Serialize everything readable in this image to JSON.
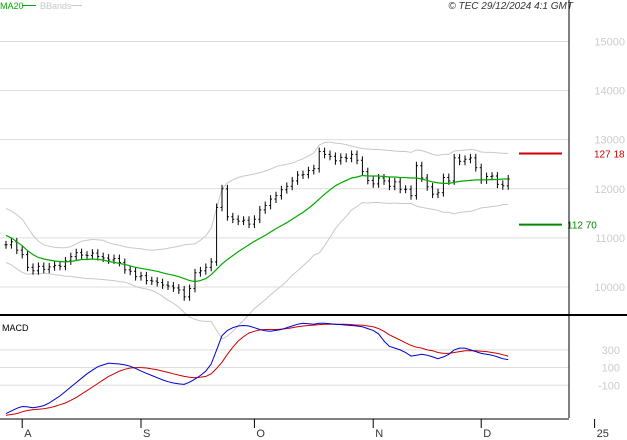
{
  "copyright": "© TEC 29/12/2024 4:1 GMT",
  "legend": [
    {
      "name": "MA20",
      "color": "#00aa00"
    },
    {
      "name": "BBands",
      "color": "#c8c8c8"
    }
  ],
  "macd_label": "MACD",
  "colors": {
    "candle": "#000000",
    "ma": "#00aa00",
    "bands": "#c8c8c8",
    "macd": "#0000cc",
    "signal": "#cc0000",
    "high_level": "#cc0000",
    "low_level": "#008800",
    "grid": "#dddddd"
  },
  "chart_data": [
    {
      "type": "line",
      "title": "",
      "y_ticks": [
        "10000",
        "11000",
        "12000",
        "13000",
        "14000",
        "15000"
      ],
      "ylim": [
        9450,
        15600
      ],
      "x_ticks": [
        {
          "label": "A",
          "index": 3
        },
        {
          "label": "S",
          "index": 25
        },
        {
          "label": "O",
          "index": 46
        },
        {
          "label": "N",
          "index": 68
        },
        {
          "label": "D",
          "index": 88
        },
        {
          "label": "25",
          "index": 109
        }
      ],
      "levels": [
        {
          "value": 12718,
          "label": "127 18",
          "color": "#cc0000"
        },
        {
          "value": 11270,
          "label": "112 70",
          "color": "#008800"
        }
      ],
      "series": [
        {
          "values": [
            10860,
            10920,
            10750,
            10660,
            10400,
            10330,
            10420,
            10360,
            10410,
            10440,
            10420,
            10530,
            10620,
            10700,
            10650,
            10640,
            10690,
            10620,
            10590,
            10550,
            10580,
            10500,
            10350,
            10320,
            10210,
            10230,
            10130,
            10120,
            10090,
            10040,
            10020,
            9980,
            9940,
            9800,
            9970,
            10290,
            10330,
            10400,
            10510,
            11620,
            12000,
            11430,
            11380,
            11340,
            11360,
            11280,
            11380,
            11570,
            11660,
            11790,
            11860,
            11980,
            12050,
            12160,
            12280,
            12290,
            12370,
            12410,
            12760,
            12700,
            12660,
            12570,
            12640,
            12620,
            12700,
            12580,
            12350,
            12170,
            12100,
            12220,
            12160,
            12050,
            12140,
            11990,
            11990,
            11860,
            12470,
            12220,
            12040,
            11890,
            11920,
            12230,
            12160,
            12630,
            12560,
            12600,
            12630,
            12430,
            12180,
            12250,
            12260,
            12090,
            12060,
            12200
          ]
        },
        {
          "name": "MA20",
          "values": [
            11050,
            11000,
            10920,
            10840,
            10740,
            10660,
            10600,
            10570,
            10550,
            10530,
            10520,
            10510,
            10520,
            10540,
            10560,
            10560,
            10570,
            10560,
            10550,
            10520,
            10500,
            10480,
            10460,
            10430,
            10400,
            10380,
            10360,
            10340,
            10320,
            10290,
            10260,
            10240,
            10210,
            10170,
            10130,
            10110,
            10130,
            10170,
            10250,
            10360,
            10470,
            10560,
            10640,
            10720,
            10790,
            10860,
            10930,
            10990,
            11050,
            11120,
            11190,
            11250,
            11310,
            11380,
            11450,
            11520,
            11600,
            11690,
            11790,
            11890,
            11980,
            12060,
            12120,
            12170,
            12220,
            12240,
            12270,
            12260,
            12260,
            12260,
            12250,
            12240,
            12240,
            12230,
            12230,
            12220,
            12220,
            12200,
            12170,
            12140,
            12120,
            12110,
            12110,
            12130,
            12150,
            12160,
            12170,
            12180,
            12180,
            12180,
            12190,
            12190,
            12200,
            12200
          ]
        },
        {
          "name": "BBands upper",
          "values": [
            11600,
            11550,
            11470,
            11380,
            11220,
            11050,
            10930,
            10860,
            10830,
            10810,
            10800,
            10800,
            10820,
            10880,
            10930,
            10950,
            10970,
            10960,
            10950,
            10900,
            10870,
            10850,
            10820,
            10800,
            10790,
            10780,
            10760,
            10750,
            10760,
            10770,
            10790,
            10810,
            10830,
            10860,
            10870,
            10880,
            10950,
            11040,
            11200,
            11600,
            12000,
            12120,
            12180,
            12230,
            12260,
            12280,
            12300,
            12330,
            12360,
            12400,
            12450,
            12480,
            12500,
            12520,
            12570,
            12610,
            12670,
            12730,
            12890,
            12940,
            12950,
            12930,
            12920,
            12900,
            12870,
            12840,
            12820,
            12810,
            12800,
            12800,
            12790,
            12780,
            12770,
            12760,
            12760,
            12740,
            12790,
            12780,
            12740,
            12700,
            12680,
            12700,
            12700,
            12770,
            12780,
            12790,
            12800,
            12790,
            12750,
            12740,
            12740,
            12730,
            12720,
            12720
          ]
        },
        {
          "name": "BBands lower",
          "values": [
            10500,
            10450,
            10370,
            10300,
            10260,
            10270,
            10270,
            10280,
            10270,
            10250,
            10240,
            10220,
            10220,
            10200,
            10190,
            10170,
            10170,
            10160,
            10150,
            10140,
            10130,
            10110,
            10100,
            10060,
            10010,
            9980,
            9960,
            9930,
            9880,
            9810,
            9730,
            9670,
            9590,
            9480,
            9390,
            9340,
            9310,
            9300,
            9300,
            9120,
            8940,
            9000,
            9100,
            9210,
            9320,
            9440,
            9560,
            9650,
            9740,
            9840,
            9930,
            10020,
            10120,
            10240,
            10330,
            10430,
            10530,
            10650,
            10690,
            10840,
            11010,
            11190,
            11320,
            11440,
            11570,
            11640,
            11720,
            11710,
            11720,
            11720,
            11710,
            11700,
            11710,
            11700,
            11700,
            11700,
            11650,
            11620,
            11600,
            11580,
            11560,
            11520,
            11520,
            11490,
            11520,
            11530,
            11540,
            11570,
            11610,
            11620,
            11640,
            11650,
            11680,
            11680
          ]
        }
      ]
    },
    {
      "type": "line",
      "title": "",
      "y_ticks": [
        "300",
        "100",
        "-100"
      ],
      "ylim": [
        -470,
        660
      ],
      "series": [
        {
          "name": "MACD",
          "values": [
            -420,
            -390,
            -360,
            -340,
            -345,
            -355,
            -345,
            -330,
            -300,
            -260,
            -220,
            -170,
            -120,
            -70,
            -20,
            30,
            70,
            110,
            130,
            150,
            145,
            140,
            130,
            115,
            90,
            60,
            35,
            10,
            -15,
            -40,
            -60,
            -75,
            -85,
            -90,
            -65,
            -30,
            10,
            60,
            140,
            300,
            460,
            520,
            550,
            570,
            575,
            570,
            550,
            530,
            515,
            510,
            520,
            530,
            550,
            570,
            590,
            600,
            595,
            590,
            600,
            600,
            595,
            590,
            585,
            580,
            575,
            570,
            560,
            540,
            520,
            480,
            400,
            340,
            320,
            300,
            270,
            230,
            240,
            250,
            240,
            220,
            200,
            220,
            250,
            300,
            320,
            320,
            300,
            280,
            260,
            250,
            240,
            220,
            200,
            190
          ]
        },
        {
          "name": "Signal",
          "values": [
            -440,
            -430,
            -420,
            -400,
            -385,
            -375,
            -370,
            -365,
            -355,
            -340,
            -320,
            -300,
            -270,
            -240,
            -200,
            -160,
            -120,
            -80,
            -40,
            0,
            30,
            60,
            80,
            95,
            100,
            100,
            95,
            85,
            75,
            60,
            45,
            30,
            15,
            0,
            -10,
            -15,
            -10,
            0,
            30,
            90,
            160,
            250,
            330,
            400,
            450,
            490,
            510,
            525,
            530,
            530,
            530,
            535,
            540,
            550,
            560,
            570,
            575,
            580,
            585,
            590,
            590,
            590,
            590,
            590,
            585,
            580,
            580,
            570,
            560,
            540,
            510,
            470,
            440,
            410,
            380,
            350,
            330,
            320,
            300,
            290,
            270,
            260,
            260,
            270,
            280,
            290,
            290,
            290,
            285,
            280,
            270,
            260,
            245,
            230
          ]
        }
      ]
    }
  ]
}
